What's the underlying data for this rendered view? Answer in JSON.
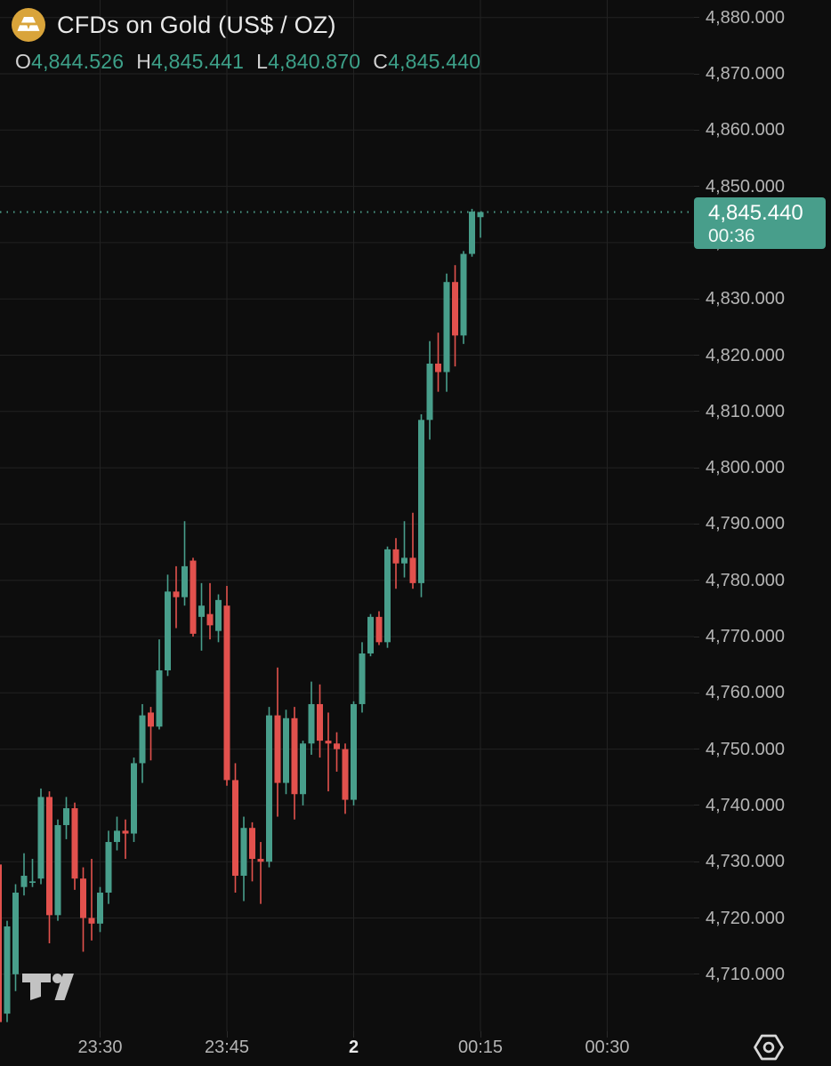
{
  "header": {
    "symbol_title": "CFDs on Gold (US$ / OZ)",
    "ohlc": [
      {
        "key": "O",
        "value": "4,844.526"
      },
      {
        "key": "H",
        "value": "4,845.441"
      },
      {
        "key": "L",
        "value": "4,840.870"
      },
      {
        "key": "C",
        "value": "4,845.440"
      }
    ]
  },
  "price_label": {
    "price": "4,845.440",
    "countdown": "00:36"
  },
  "colors": {
    "background": "#0d0d0d",
    "grid": "#222222",
    "up": "#489e8b",
    "down": "#e2514d",
    "axis_text": "#b5b5b5",
    "bright_text": "#e9e9e9",
    "value_text": "#3da189",
    "gold_icon": "#d9a43a",
    "price_line": "#4da08c"
  },
  "chart_data": {
    "type": "candlestick",
    "title": "CFDs on Gold (US$ / OZ)",
    "timeframe_minutes": 1,
    "ylim": [
      4700,
      4883
    ],
    "grid": true,
    "columns": [
      "time",
      "open",
      "high",
      "low",
      "close"
    ],
    "candles": [
      [
        "23:18",
        4729.5,
        4730.5,
        4701.0,
        4701.5
      ],
      [
        "23:19",
        4703.0,
        4719.5,
        4701.5,
        4718.5
      ],
      [
        "23:20",
        4710.0,
        4726.0,
        4707.0,
        4724.5
      ],
      [
        "23:21",
        4725.5,
        4731.5,
        4724.0,
        4727.5
      ],
      [
        "23:22",
        4726.5,
        4730.5,
        4725.5,
        4726.5
      ],
      [
        "23:23",
        4727.0,
        4743.0,
        4726.0,
        4741.5
      ],
      [
        "23:24",
        4741.5,
        4742.5,
        4715.5,
        4720.5
      ],
      [
        "23:25",
        4720.5,
        4737.5,
        4719.5,
        4736.5
      ],
      [
        "23:26",
        4736.5,
        4741.5,
        4734.0,
        4739.5
      ],
      [
        "23:27",
        4739.5,
        4740.5,
        4725.0,
        4727.0
      ],
      [
        "23:28",
        4727.0,
        4729.0,
        4714.0,
        4720.0
      ],
      [
        "23:29",
        4720.0,
        4730.5,
        4716.0,
        4719.0
      ],
      [
        "23:30",
        4719.0,
        4725.5,
        4717.5,
        4724.5
      ],
      [
        "23:31",
        4724.5,
        4735.5,
        4722.5,
        4733.5
      ],
      [
        "23:32",
        4733.5,
        4738.0,
        4732.0,
        4735.5
      ],
      [
        "23:33",
        4735.5,
        4737.5,
        4730.5,
        4735.0
      ],
      [
        "23:34",
        4735.0,
        4748.5,
        4733.5,
        4747.5
      ],
      [
        "23:35",
        4747.5,
        4758.0,
        4744.0,
        4756.0
      ],
      [
        "23:36",
        4756.5,
        4757.5,
        4748.0,
        4754.0
      ],
      [
        "23:37",
        4754.0,
        4769.5,
        4753.5,
        4764.0
      ],
      [
        "23:38",
        4764.0,
        4781.0,
        4763.0,
        4778.0
      ],
      [
        "23:39",
        4778.0,
        4782.5,
        4771.5,
        4777.0
      ],
      [
        "23:40",
        4777.0,
        4790.5,
        4775.5,
        4782.5
      ],
      [
        "23:41",
        4783.5,
        4784.0,
        4770.0,
        4770.5
      ],
      [
        "23:42",
        4773.5,
        4779.5,
        4767.5,
        4775.5
      ],
      [
        "23:43",
        4774.0,
        4779.5,
        4769.5,
        4772.0
      ],
      [
        "23:44",
        4771.0,
        4777.5,
        4769.0,
        4776.5
      ],
      [
        "23:45",
        4775.5,
        4779.0,
        4743.5,
        4744.5
      ],
      [
        "23:46",
        4744.5,
        4747.5,
        4724.5,
        4727.5
      ],
      [
        "23:47",
        4727.5,
        4738.0,
        4723.0,
        4736.0
      ],
      [
        "23:48",
        4736.0,
        4737.0,
        4726.5,
        4730.5
      ],
      [
        "23:49",
        4730.5,
        4733.5,
        4722.5,
        4730.0
      ],
      [
        "23:50",
        4730.0,
        4757.5,
        4729.0,
        4756.0
      ],
      [
        "23:51",
        4756.0,
        4764.5,
        4738.0,
        4744.0
      ],
      [
        "23:52",
        4744.0,
        4757.0,
        4742.0,
        4755.5
      ],
      [
        "23:53",
        4755.5,
        4757.5,
        4737.5,
        4742.0
      ],
      [
        "23:54",
        4742.0,
        4751.5,
        4740.0,
        4751.0
      ],
      [
        "23:55",
        4751.0,
        4762.0,
        4749.0,
        4758.0
      ],
      [
        "23:56",
        4758.0,
        4761.5,
        4748.5,
        4751.5
      ],
      [
        "23:57",
        4751.5,
        4756.5,
        4742.5,
        4751.0
      ],
      [
        "23:58",
        4751.0,
        4753.0,
        4746.0,
        4750.0
      ],
      [
        "23:59",
        4750.0,
        4751.0,
        4738.5,
        4741.0
      ],
      [
        "00:00",
        4741.0,
        4758.5,
        4740.0,
        4758.0
      ],
      [
        "00:01",
        4758.0,
        4769.0,
        4756.5,
        4767.0
      ],
      [
        "00:02",
        4767.0,
        4774.0,
        4766.5,
        4773.5
      ],
      [
        "00:03",
        4773.5,
        4774.5,
        4768.5,
        4769.0
      ],
      [
        "00:04",
        4769.0,
        4786.0,
        4768.0,
        4785.5
      ],
      [
        "00:05",
        4785.5,
        4787.5,
        4778.5,
        4783.0
      ],
      [
        "00:06",
        4783.0,
        4790.5,
        4780.5,
        4784.0
      ],
      [
        "00:07",
        4784.0,
        4792.0,
        4778.5,
        4779.5
      ],
      [
        "00:08",
        4779.5,
        4809.5,
        4777.0,
        4808.5
      ],
      [
        "00:09",
        4808.5,
        4822.5,
        4805.0,
        4818.5
      ],
      [
        "00:10",
        4818.5,
        4824.0,
        4813.5,
        4817.0
      ],
      [
        "00:11",
        4817.0,
        4834.5,
        4813.5,
        4833.0
      ],
      [
        "00:12",
        4833.0,
        4836.0,
        4818.0,
        4823.5
      ],
      [
        "00:13",
        4823.5,
        4838.5,
        4822.0,
        4838.0
      ],
      [
        "00:14",
        4838.0,
        4846.0,
        4837.5,
        4845.5
      ],
      [
        "00:15",
        4844.526,
        4845.441,
        4840.87,
        4845.44
      ]
    ],
    "y_axis": {
      "ticks": [
        4880,
        4870,
        4860,
        4850,
        4840,
        4830,
        4820,
        4810,
        4800,
        4790,
        4780,
        4770,
        4760,
        4750,
        4740,
        4730,
        4720,
        4710
      ],
      "decimals": 3
    },
    "x_axis": {
      "ticks": [
        {
          "label": "23:30",
          "index": 12,
          "bold": false
        },
        {
          "label": "23:45",
          "index": 27,
          "bold": false
        },
        {
          "label": "2",
          "index": 42,
          "bold": true
        },
        {
          "label": "00:15",
          "index": 57,
          "bold": false
        },
        {
          "label": "00:30",
          "index": 72,
          "bold": false
        }
      ]
    },
    "price_line": {
      "price": 4845.44,
      "label": "4,845.440",
      "countdown": "00:36",
      "style": "dotted"
    }
  }
}
